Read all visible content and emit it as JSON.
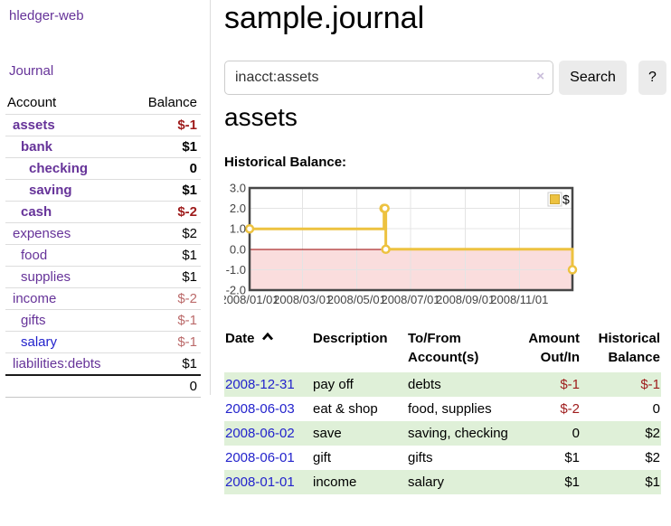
{
  "app": {
    "brand": "hledger-web"
  },
  "colors": {
    "link_purple": "#663399",
    "link_blue": "#2323cc",
    "negative_strong": "#9e1b1b",
    "negative_soft": "#bb6a6a",
    "row_stripe_green": "#dff0d8",
    "chart_series_gold": "#edc240",
    "chart_negative_fill": "#fadddd",
    "chart_zero_line": "#990000",
    "chart_border": "#474747",
    "chart_grid": "#e4e4e4",
    "divider_gray": "#dddddd"
  },
  "sidebar": {
    "journal_label": "Journal",
    "accounts_header": {
      "account": "Account",
      "balance": "Balance"
    },
    "accounts": [
      {
        "name": "assets",
        "depth": 1,
        "bold": true,
        "balance": "$-1",
        "neg": true
      },
      {
        "name": "bank",
        "depth": 2,
        "bold": true,
        "balance": "$1",
        "neg": false
      },
      {
        "name": "checking",
        "depth": 3,
        "bold": true,
        "balance": "0",
        "neg": false
      },
      {
        "name": "saving",
        "depth": 3,
        "bold": true,
        "balance": "$1",
        "neg": false
      },
      {
        "name": "cash",
        "depth": 2,
        "bold": true,
        "balance": "$-2",
        "neg": true
      },
      {
        "name": "expenses",
        "depth": 1,
        "bold": false,
        "balance": "$2",
        "neg": false
      },
      {
        "name": "food",
        "depth": 2,
        "bold": false,
        "balance": "$1",
        "neg": false
      },
      {
        "name": "supplies",
        "depth": 2,
        "bold": false,
        "balance": "$1",
        "neg": false
      },
      {
        "name": "income",
        "depth": 1,
        "bold": false,
        "balance": "$-2",
        "neg": true
      },
      {
        "name": "gifts",
        "depth": 2,
        "bold": false,
        "balance": "$-1",
        "neg": true
      },
      {
        "name": "salary",
        "depth": 2,
        "bold": false,
        "balance": "$-1",
        "neg": true,
        "link_color": "blue"
      },
      {
        "name": "liabilities:debts",
        "depth": 1,
        "bold": false,
        "balance": "$1",
        "neg": false
      }
    ],
    "total": "0"
  },
  "header": {
    "title": "sample.journal"
  },
  "search": {
    "query": "inacct:assets",
    "clear_icon": "×",
    "button": "Search",
    "help": "?"
  },
  "account_page": {
    "heading": "assets",
    "chart_label": "Historical Balance:"
  },
  "chart_data": {
    "type": "line",
    "steps": true,
    "title": "Historical Balance:",
    "series": [
      {
        "name": "$",
        "points": [
          [
            "2008-01-01",
            1
          ],
          [
            "2008-06-01",
            2
          ],
          [
            "2008-06-02",
            2
          ],
          [
            "2008-06-03",
            0
          ],
          [
            "2008-12-31",
            -1
          ]
        ]
      }
    ],
    "x_range": [
      "2008-01-01",
      "2008-12-31"
    ],
    "x_ticks": [
      "2008/01/01",
      "2008/03/01",
      "2008/05/01",
      "2008/07/01",
      "2008/09/01",
      "2008/11/01"
    ],
    "y_ticks": [
      "3.0",
      "2.0",
      "1.0",
      "0.0",
      "-1.0",
      "-2.0"
    ],
    "ylim": [
      -2,
      3
    ],
    "grid": true,
    "legend_position": "top-right",
    "negative_region_shaded": true
  },
  "register": {
    "columns": [
      {
        "label": "Date",
        "sorted": "ascending"
      },
      {
        "label": "Description"
      },
      {
        "label": "To/From Account(s)"
      },
      {
        "label": "Amount Out/In",
        "align": "right"
      },
      {
        "label": "Historical Balance",
        "align": "right"
      }
    ],
    "rows": [
      {
        "date": "2008-12-31",
        "description": "pay off",
        "accounts": "debts",
        "amount": "$-1",
        "amount_neg": true,
        "balance": "$-1",
        "balance_neg": true,
        "shaded": true
      },
      {
        "date": "2008-06-03",
        "description": "eat & shop",
        "accounts": "food, supplies",
        "amount": "$-2",
        "amount_neg": true,
        "balance": "0",
        "balance_neg": false,
        "shaded": false
      },
      {
        "date": "2008-06-02",
        "description": "save",
        "accounts": "saving, checking",
        "amount": "0",
        "amount_neg": false,
        "balance": "$2",
        "balance_neg": false,
        "shaded": true
      },
      {
        "date": "2008-06-01",
        "description": "gift",
        "accounts": "gifts",
        "amount": "$1",
        "amount_neg": false,
        "balance": "$2",
        "balance_neg": false,
        "shaded": false
      },
      {
        "date": "2008-01-01",
        "description": "income",
        "accounts": "salary",
        "amount": "$1",
        "amount_neg": false,
        "balance": "$1",
        "balance_neg": false,
        "shaded": true
      }
    ]
  }
}
